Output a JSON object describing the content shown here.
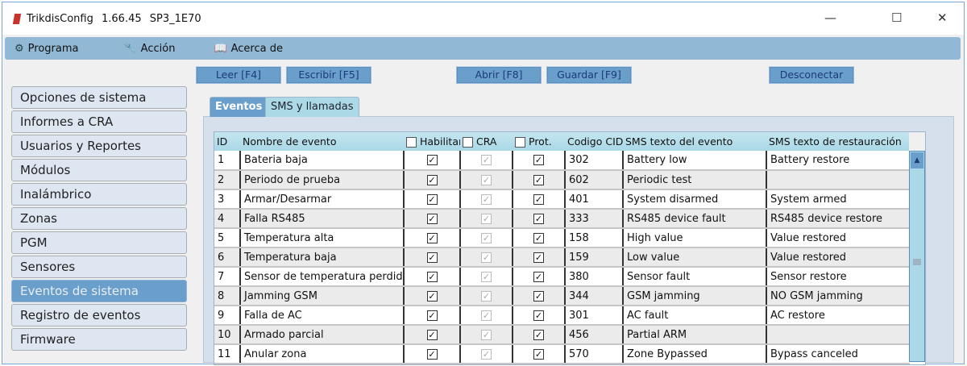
{
  "window": {
    "title": "TrikdisConfig 1.66.45   SP3_1E70",
    "controls": {
      "minimize": "—",
      "maximize": "☐",
      "close": "✕"
    }
  },
  "menu": [
    {
      "label": "Programa",
      "icon": "gear-icon",
      "glyph": "⚙"
    },
    {
      "label": "Acción",
      "icon": "wrench-icon",
      "glyph": "🔧"
    },
    {
      "label": "Acerca de",
      "icon": "book-icon",
      "glyph": "📖"
    }
  ],
  "toolbar": {
    "read": "Leer [F4]",
    "write": "Escribir [F5]",
    "open": "Abrir [F8]",
    "save": "Guardar [F9]",
    "disconnect": "Desconectar"
  },
  "sidebar": {
    "items": [
      "Opciones de sistema",
      "Informes a CRA",
      "Usuarios y Reportes",
      "Módulos",
      "Inalámbrico",
      "Zonas",
      "PGM",
      "Sensores",
      "Eventos de sistema",
      "Registro de eventos",
      "Firmware"
    ],
    "active": "Eventos de sistema"
  },
  "tabs": [
    {
      "label": "Eventos",
      "active": true
    },
    {
      "label": "SMS y llamadas",
      "active": false
    }
  ],
  "table": {
    "headers": [
      "ID",
      "Nombre de evento",
      "Habilitar",
      "CRA",
      "Prot.",
      "Codigo CID",
      "SMS texto del evento",
      "SMS texto de restauración"
    ],
    "rows": [
      {
        "id": "1",
        "name": "Bateria baja",
        "enable": true,
        "cra": true,
        "prot": true,
        "cid": "302",
        "sms": "Battery low",
        "restore": "Battery restore"
      },
      {
        "id": "2",
        "name": "Periodo de prueba",
        "enable": true,
        "cra": true,
        "prot": true,
        "cid": "602",
        "sms": "Periodic test",
        "restore": ""
      },
      {
        "id": "3",
        "name": "Armar/Desarmar",
        "enable": true,
        "cra": true,
        "prot": true,
        "cid": "401",
        "sms": "System disarmed",
        "restore": "System armed"
      },
      {
        "id": "4",
        "name": "Falla RS485",
        "enable": true,
        "cra": true,
        "prot": true,
        "cid": "333",
        "sms": "RS485 device fault",
        "restore": "RS485 device restore"
      },
      {
        "id": "5",
        "name": "Temperatura alta",
        "enable": true,
        "cra": true,
        "prot": true,
        "cid": "158",
        "sms": "High value",
        "restore": "Value restored"
      },
      {
        "id": "6",
        "name": "Temperatura baja",
        "enable": true,
        "cra": true,
        "prot": true,
        "cid": "159",
        "sms": "Low value",
        "restore": "Value restored"
      },
      {
        "id": "7",
        "name": "Sensor de temperatura perdido",
        "enable": true,
        "cra": true,
        "prot": true,
        "cid": "380",
        "sms": "Sensor fault",
        "restore": "Sensor restore"
      },
      {
        "id": "8",
        "name": "Jamming GSM",
        "enable": true,
        "cra": true,
        "prot": true,
        "cid": "344",
        "sms": "GSM jamming",
        "restore": "NO GSM jamming"
      },
      {
        "id": "9",
        "name": "Falla de AC",
        "enable": true,
        "cra": true,
        "prot": true,
        "cid": "301",
        "sms": "AC fault",
        "restore": "AC restore"
      },
      {
        "id": "10",
        "name": "Armado parcial",
        "enable": true,
        "cra": true,
        "prot": true,
        "cid": "456",
        "sms": "Partial ARM",
        "restore": ""
      },
      {
        "id": "11",
        "name": "Anular zona",
        "enable": true,
        "cra": true,
        "prot": true,
        "cid": "570",
        "sms": "Zone Bypassed",
        "restore": "Bypass canceled"
      }
    ]
  },
  "colors": {
    "accent": "#6a9fcc",
    "menubar": "#91b8d4",
    "header": "#aad8e6",
    "button_text": "#1b3b78"
  }
}
